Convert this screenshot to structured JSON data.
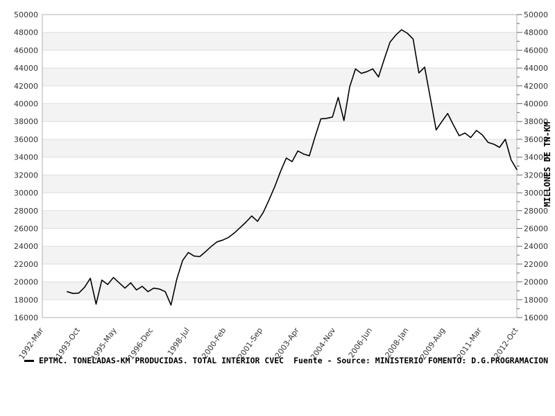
{
  "legend": {
    "series_label": "EPTMC. TONELADAS-KM PRODUCIDAS. TOTAL INTERIOR CVEC",
    "source_label": "Fuente - Source: MINISTERIO FOMENTO: D.G.PROGRAMACION"
  },
  "chart_data": {
    "type": "line",
    "title": "",
    "legend_position": "bottom-left",
    "grid": "horizontal-only",
    "style": {
      "line_color": "#000000",
      "band_color": "#f3f3f3",
      "grid_color": "#dedede",
      "axis_color": "#b0b0b0",
      "tick_color": "#666666",
      "label_color": "#333333",
      "background": "#ffffff"
    },
    "y_axis": {
      "min": 16000,
      "max": 50000,
      "major_step": 2000,
      "minor_step": 1000,
      "labels_both_sides": true,
      "right_unit_label": "MILLONES DE TN-KM"
    },
    "x_axis": {
      "min": 1992.1667,
      "max": 2012.75,
      "tick_interval_months": 19,
      "ticks": [
        {
          "t": 1992.1667,
          "label": "1992-Mar"
        },
        {
          "t": 1993.75,
          "label": "1993-Oct"
        },
        {
          "t": 1995.3333,
          "label": "1995-May"
        },
        {
          "t": 1996.9167,
          "label": "1996-Dec"
        },
        {
          "t": 1998.5,
          "label": "1998-Jul"
        },
        {
          "t": 2000.0833,
          "label": "2000-Feb"
        },
        {
          "t": 2001.6667,
          "label": "2001-Sep"
        },
        {
          "t": 2003.25,
          "label": "2003-Apr"
        },
        {
          "t": 2004.8333,
          "label": "2004-Nov"
        },
        {
          "t": 2006.4167,
          "label": "2006-Jun"
        },
        {
          "t": 2008.0,
          "label": "2008-Jan"
        },
        {
          "t": 2009.5833,
          "label": "2009-Aug"
        },
        {
          "t": 2011.1667,
          "label": "2011-Mar"
        },
        {
          "t": 2012.75,
          "label": "2012-Oct"
        }
      ]
    },
    "series": [
      {
        "name": "EPTMC. TONELADAS-KM PRODUCIDAS. TOTAL INTERIOR CVEC",
        "color": "#000000",
        "frequency": "quarterly",
        "start_time": 1993.25,
        "time_step": 0.25,
        "values": [
          18900,
          18700,
          18750,
          19400,
          20400,
          17500,
          20200,
          19700,
          20500,
          19900,
          19300,
          19900,
          19100,
          19500,
          18900,
          19300,
          19200,
          18900,
          17400,
          20300,
          22400,
          23300,
          22900,
          22850,
          23400,
          24000,
          24500,
          24700,
          25000,
          25500,
          26100,
          26700,
          27400,
          26800,
          27800,
          29200,
          30700,
          32400,
          33900,
          33500,
          34700,
          34350,
          34150,
          36300,
          38300,
          38350,
          38500,
          40700,
          38100,
          41900,
          43900,
          43400,
          43600,
          43900,
          43000,
          45000,
          46900,
          47700,
          48300,
          47900,
          47250,
          43450,
          44100,
          40600,
          37050,
          38000,
          38900,
          37600,
          36400,
          36700,
          36200,
          37000,
          36500,
          35650,
          35450,
          35100,
          36000,
          33700,
          32600
        ]
      }
    ]
  }
}
